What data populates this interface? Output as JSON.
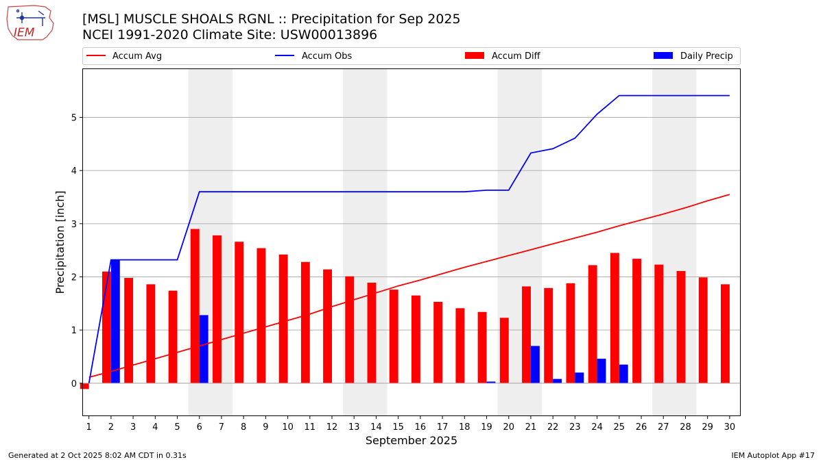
{
  "logo": {
    "text": "IEM"
  },
  "header": {
    "title": "[MSL] MUSCLE SHOALS RGNL :: Precipitation for Sep 2025",
    "subtitle": "NCEI 1991-2020 Climate Site: USW00013896"
  },
  "footer": {
    "generated": "Generated at 2 Oct 2025 8:02 AM CDT in 0.31s",
    "app": "IEM Autoplot App #17"
  },
  "colors": {
    "accum_avg": "#ff0000",
    "accum_obs": "#0000ff",
    "accum_diff": "#ff0000",
    "daily_precip": "#0000ff",
    "weekend_shade": "#eeeeee",
    "grid": "#b0b0b0"
  },
  "chart_data": {
    "type": "bar",
    "title": "[MSL] MUSCLE SHOALS RGNL :: Precipitation for Sep 2025",
    "xlabel": "September 2025",
    "ylabel": "Precipitation [inch]",
    "xlim": [
      0.7,
      30.5
    ],
    "ylim": [
      -0.62,
      5.92
    ],
    "yticks": [
      0,
      1,
      2,
      3,
      4,
      5
    ],
    "grid": "horizontal",
    "legend_position": "top",
    "legend": [
      "Accum Avg",
      "Accum Obs",
      "Accum Diff",
      "Daily Precip"
    ],
    "weekend_days": [
      [
        6,
        7
      ],
      [
        13,
        14
      ],
      [
        20,
        21
      ],
      [
        27,
        28
      ]
    ],
    "days": [
      1,
      2,
      3,
      4,
      5,
      6,
      7,
      8,
      9,
      10,
      11,
      12,
      13,
      14,
      15,
      16,
      17,
      18,
      19,
      20,
      21,
      22,
      23,
      24,
      25,
      26,
      27,
      28,
      29,
      30
    ],
    "series": [
      {
        "name": "Accum Avg",
        "kind": "line",
        "values": [
          0.11,
          0.22,
          0.34,
          0.46,
          0.58,
          0.7,
          0.82,
          0.94,
          1.06,
          1.18,
          1.3,
          1.44,
          1.57,
          1.7,
          1.83,
          1.94,
          2.06,
          2.18,
          2.29,
          2.4,
          2.51,
          2.62,
          2.73,
          2.84,
          2.96,
          3.07,
          3.18,
          3.3,
          3.43,
          3.55
        ]
      },
      {
        "name": "Accum Obs",
        "kind": "line",
        "values": [
          0.0,
          2.32,
          2.32,
          2.32,
          2.32,
          3.6,
          3.6,
          3.6,
          3.6,
          3.6,
          3.6,
          3.6,
          3.6,
          3.6,
          3.6,
          3.6,
          3.6,
          3.6,
          3.63,
          3.63,
          4.33,
          4.41,
          4.61,
          5.06,
          5.41,
          5.41,
          5.41,
          5.41,
          5.41,
          5.41
        ]
      },
      {
        "name": "Accum Diff",
        "kind": "bar",
        "values": [
          -0.11,
          2.1,
          1.98,
          1.86,
          1.74,
          2.9,
          2.78,
          2.66,
          2.54,
          2.42,
          2.28,
          2.14,
          2.01,
          1.89,
          1.76,
          1.65,
          1.53,
          1.41,
          1.34,
          1.23,
          1.82,
          1.79,
          1.88,
          2.22,
          2.45,
          2.34,
          2.23,
          2.11,
          1.99,
          1.86
        ]
      },
      {
        "name": "Daily Precip",
        "kind": "bar",
        "values": [
          0.0,
          2.32,
          0.0,
          0.0,
          0.0,
          1.28,
          0.0,
          0.0,
          0.0,
          0.0,
          0.0,
          0.0,
          0.0,
          0.0,
          0.0,
          0.0,
          0.0,
          0.0,
          0.03,
          0.0,
          0.7,
          0.08,
          0.2,
          0.46,
          0.35,
          0.0,
          0.0,
          0.0,
          0.0,
          0.0
        ]
      }
    ]
  }
}
